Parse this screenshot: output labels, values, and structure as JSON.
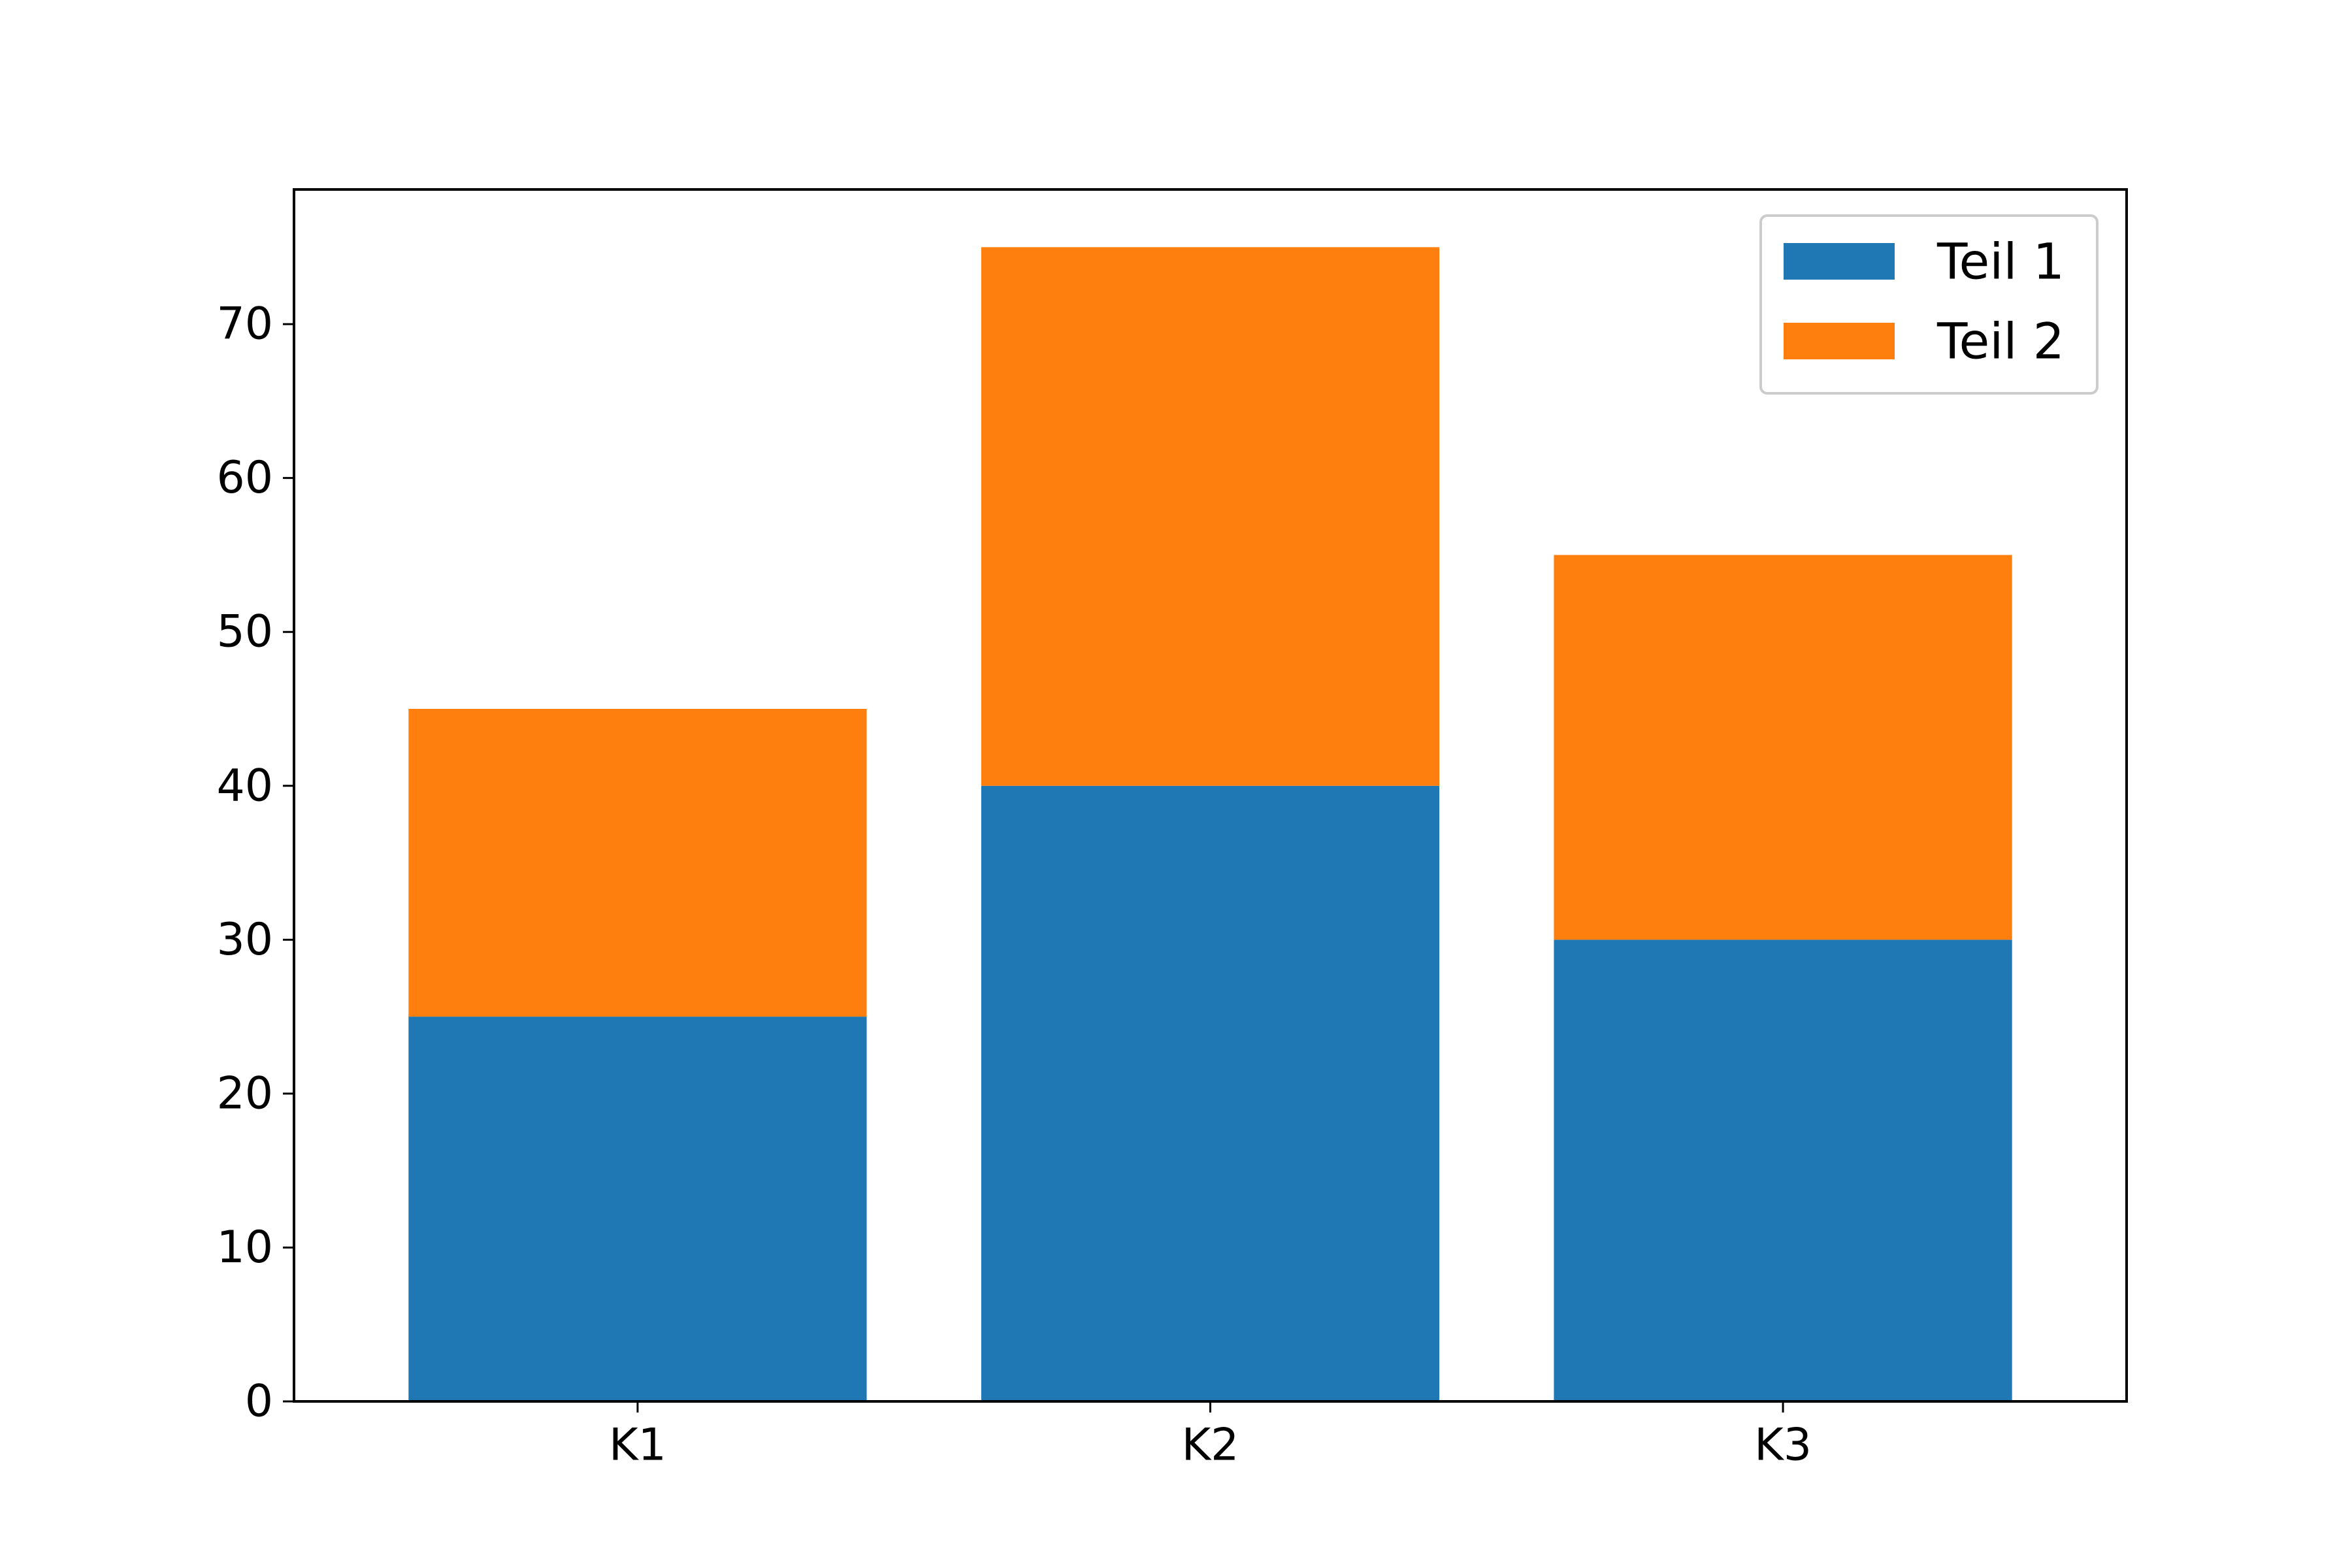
{
  "chart_data": {
    "type": "bar",
    "stacked": true,
    "categories": [
      "K1",
      "K2",
      "K3"
    ],
    "series": [
      {
        "name": "Teil 1",
        "values": [
          25,
          40,
          30
        ],
        "color": "#1f77b4"
      },
      {
        "name": "Teil 2",
        "values": [
          20,
          35,
          25
        ],
        "color": "#ff7f0e"
      }
    ],
    "title": "",
    "xlabel": "",
    "ylabel": "",
    "ylim": [
      0,
      78.75
    ],
    "yticks": [
      0,
      10,
      20,
      30,
      40,
      50,
      60,
      70
    ],
    "grid": false,
    "legend_position": "top-right"
  }
}
